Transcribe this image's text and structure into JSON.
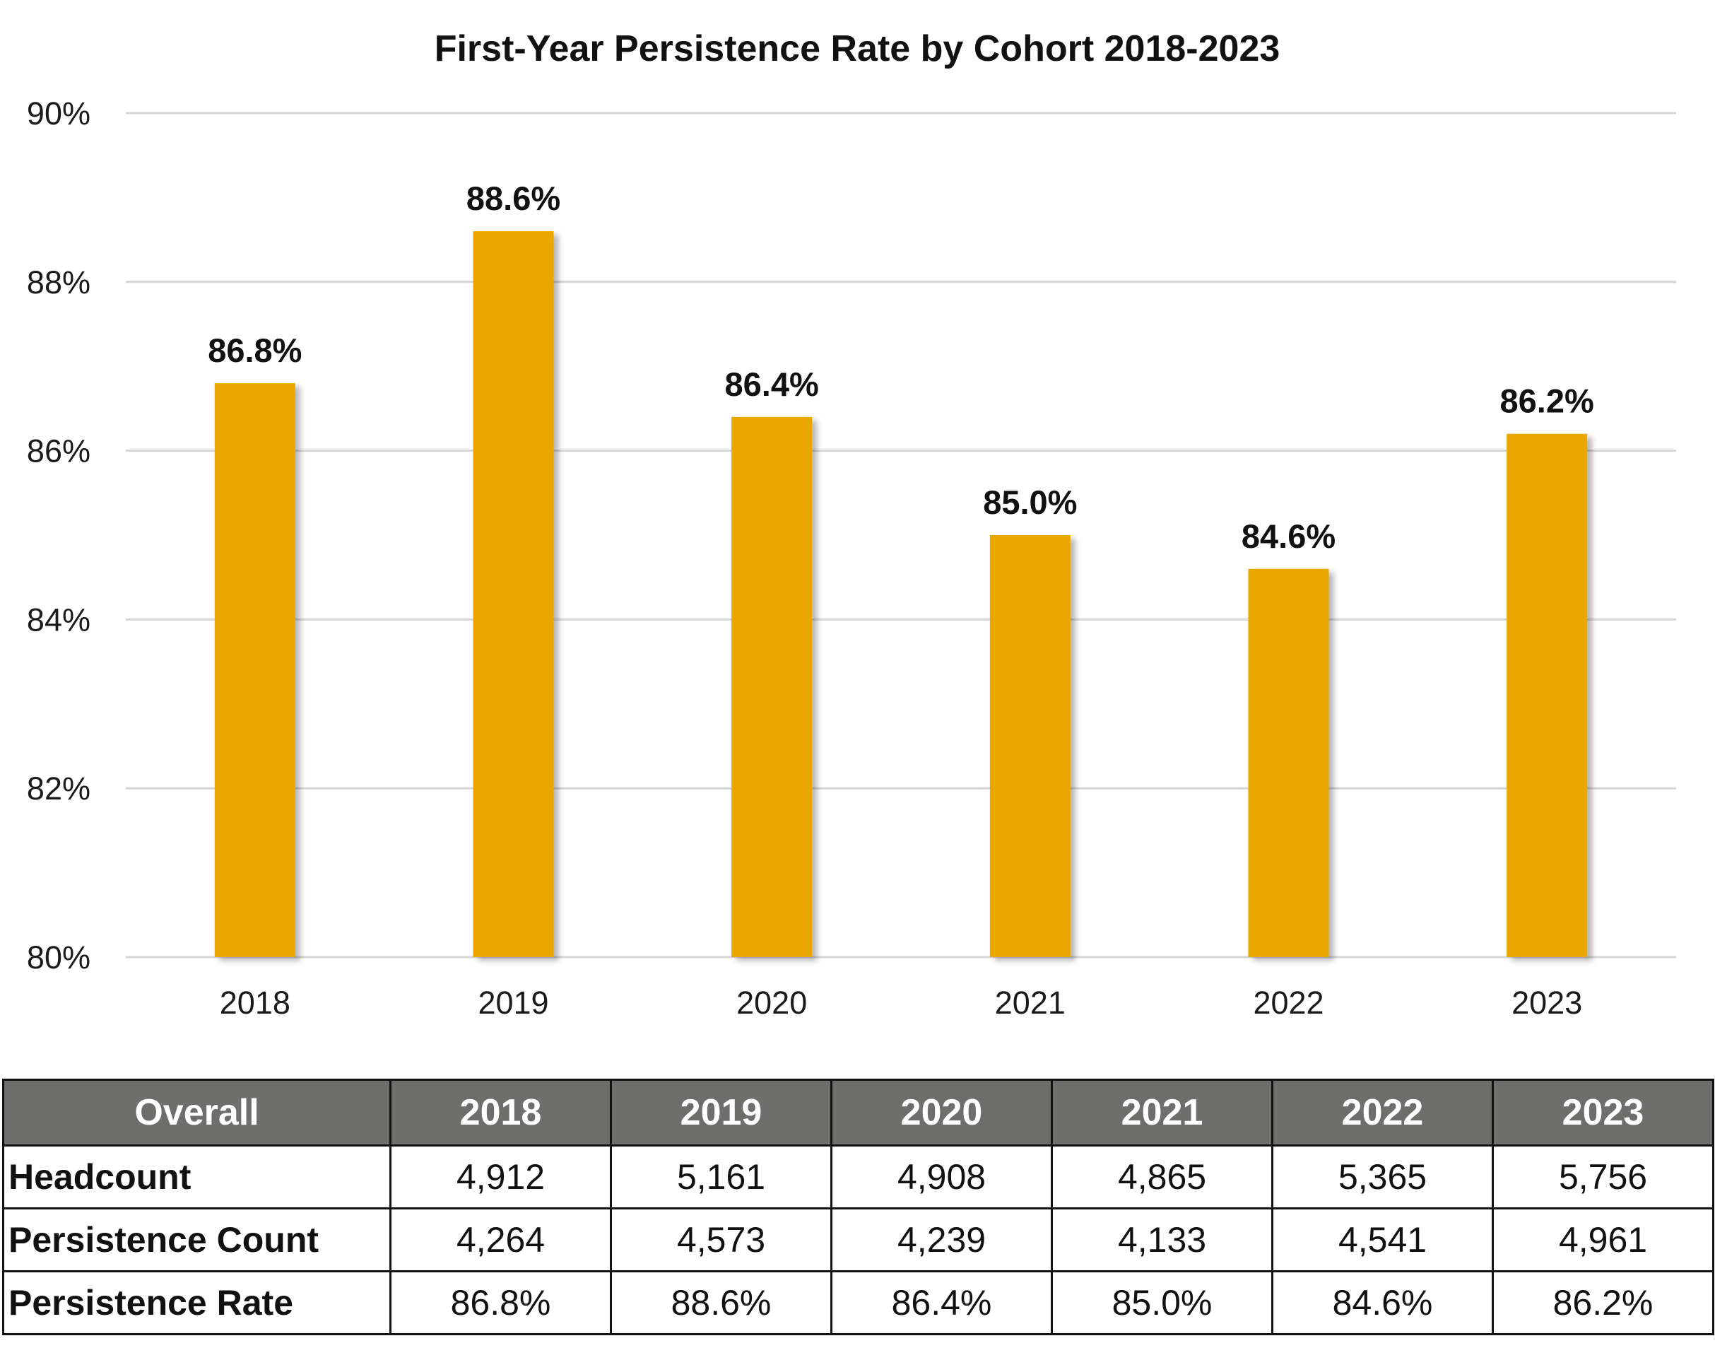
{
  "chart_data": {
    "type": "bar",
    "title": "First-Year Persistence Rate by Cohort 2018-2023",
    "categories": [
      "2018",
      "2019",
      "2020",
      "2021",
      "2022",
      "2023"
    ],
    "values": [
      86.8,
      88.6,
      86.4,
      85.0,
      84.6,
      86.2
    ],
    "data_labels": [
      "86.8%",
      "88.6%",
      "86.4%",
      "85.0%",
      "84.6%",
      "86.2%"
    ],
    "ylim": [
      80,
      90
    ],
    "yticks": [
      80,
      82,
      84,
      86,
      88,
      90
    ],
    "ytick_labels": [
      "80%",
      "82%",
      "84%",
      "86%",
      "88%",
      "90%"
    ],
    "xlabel": "",
    "ylabel": "",
    "grid": true,
    "bar_color": "#EAA700"
  },
  "table": {
    "header_label": "Overall",
    "columns": [
      "2018",
      "2019",
      "2020",
      "2021",
      "2022",
      "2023"
    ],
    "rows": [
      {
        "label": "Headcount",
        "values": [
          "4,912",
          "5,161",
          "4,908",
          "4,865",
          "5,365",
          "5,756"
        ]
      },
      {
        "label": "Persistence Count",
        "values": [
          "4,264",
          "4,573",
          "4,239",
          "4,133",
          "4,541",
          "4,961"
        ]
      },
      {
        "label": "Persistence Rate",
        "values": [
          "86.8%",
          "88.6%",
          "86.4%",
          "85.0%",
          "84.6%",
          "86.2%"
        ]
      }
    ],
    "header_color": "#6E6E6C"
  }
}
